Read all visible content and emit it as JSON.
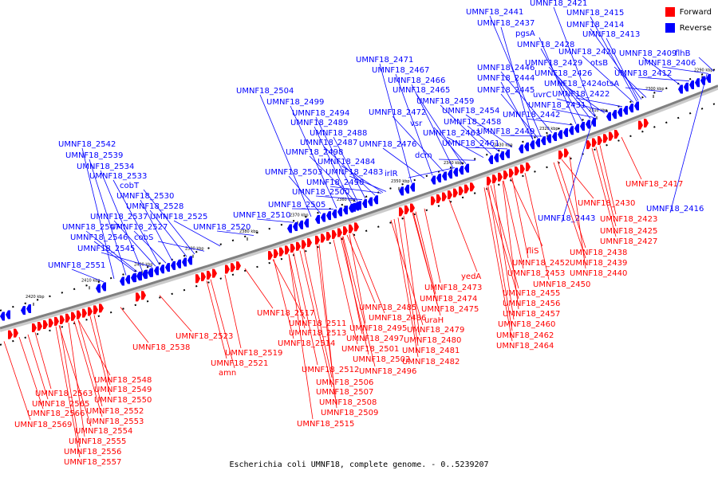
{
  "title": "Escherichia coli UMNF18, complete genome. - 0..5239207",
  "legend": [
    {
      "label": "Forward",
      "color": "#ff0000"
    },
    {
      "label": "Reverse",
      "color": "#0000ff"
    }
  ],
  "colors": {
    "forward": "#ff0000",
    "reverse": "#0000ff",
    "axis": "#808080",
    "tick": "#000000"
  },
  "ticks": [
    "2420 kbp",
    "2410 kbp",
    "2400 kbp",
    "2390 kbp",
    "2380 kbp",
    "2370 kbp",
    "2360 kbp",
    "2350 kbp",
    "2340 kbp",
    "2330 kbp",
    "2320 kbp",
    "2310 kbp",
    "2300 kbp",
    "2290 kbp"
  ],
  "reverse_labels": [
    "UMNF18_2542",
    "UMNF18_2539",
    "UMNF18_2534",
    "UMNF18_2533",
    "cobT",
    "UMNF18_2530",
    "UMNF18_2528",
    "UMNF18_2537",
    "UMNF18_2525",
    "UMNF18_2547",
    "UMNF18_2527",
    "UMNF18_2520",
    "UMNF18_2546",
    "cobS",
    "UMNF18_2545",
    "UMNF18_2551",
    "UMNF18_2510",
    "UMNF18_2505",
    "UMNF18_2500",
    "UMNF18_2490",
    "UMNF18_2503",
    "UMNF18_2483",
    "UMNF18_2484",
    "UMNF18_2498",
    "UMNF18_2487",
    "UMNF18_2488",
    "UMNF18_2489",
    "UMNF18_2494",
    "UMNF18_2499",
    "UMNF18_2504",
    "UMNF18_2471",
    "UMNF18_2467",
    "UMNF18_2466",
    "UMNF18_2465",
    "UMNF18_2472",
    "vsr",
    "dcm",
    "UMNF18_2476",
    "irlR",
    "UMNF18_2459",
    "UMNF18_2458",
    "UMNF18_2463",
    "UMNF18_2461",
    "UMNF18_2454",
    "UMNF18_2446",
    "UMNF18_2444",
    "UMNF18_2445",
    "UMNF18_2449",
    "UMNF18_2442",
    "UMNF18_2441",
    "UMNF18_2437",
    "pgsA",
    "UMNF18_2428",
    "UMNF18_2429",
    "uvrC",
    "UMNF18_2426",
    "UMNF18_2424",
    "UMNF18_2431",
    "UMNF18_2422",
    "UMNF18_2420",
    "otsB",
    "otsA",
    "UMNF18_2421",
    "UMNF18_2415",
    "UMNF18_2414",
    "UMNF18_2413",
    "UMNF18_2409",
    "flhB",
    "UMNF18_2406",
    "UMNF18_2412",
    "UMNF18_2443",
    "UMNF18_2416"
  ],
  "forward_labels": [
    "UMNF18_2563",
    "UMNF18_2565",
    "UMNF18_2566",
    "UMNF18_2569",
    "UMNF18_2548",
    "UMNF18_2549",
    "UMNF18_2550",
    "UMNF18_2552",
    "UMNF18_2553",
    "UMNF18_2554",
    "UMNF18_2555",
    "UMNF18_2556",
    "UMNF18_2557",
    "UMNF18_2538",
    "UMNF18_2523",
    "UMNF18_2519",
    "UMNF18_2521",
    "amn",
    "UMNF18_2517",
    "UMNF18_2511",
    "UMNF18_2513",
    "UMNF18_2514",
    "UMNF18_2512",
    "UMNF18_2506",
    "UMNF18_2507",
    "UMNF18_2508",
    "UMNF18_2509",
    "UMNF18_2515",
    "UMNF18_2485",
    "UMNF18_2486",
    "UMNF18_2495",
    "UMNF18_2497",
    "UMNF18_2501",
    "UMNF18_2502",
    "UMNF18_2496",
    "UMNF18_2473",
    "UMNF18_2474",
    "UMNF18_2475",
    "uraH",
    "UMNF18_2479",
    "UMNF18_2480",
    "UMNF18_2481",
    "UMNF18_2482",
    "yedA",
    "fliS",
    "UMNF18_2452",
    "UMNF18_2453",
    "UMNF18_2450",
    "UMNF18_2455",
    "UMNF18_2456",
    "UMNF18_2457",
    "UMNF18_2460",
    "UMNF18_2462",
    "UMNF18_2464",
    "UMNF18_2430",
    "UMNF18_2423",
    "UMNF18_2425",
    "UMNF18_2427",
    "UMNF18_2438",
    "UMNF18_2439",
    "UMNF18_2440",
    "UMNF18_2417"
  ]
}
